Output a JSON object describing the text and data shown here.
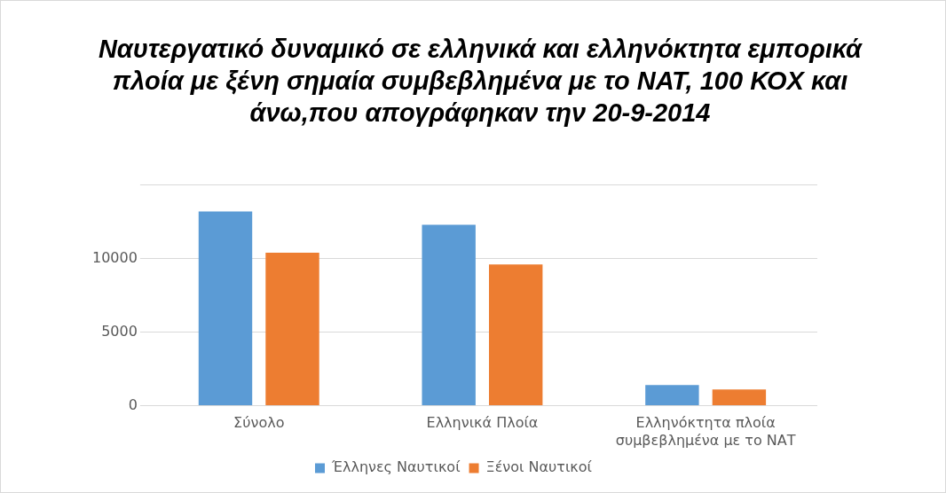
{
  "chart_data": {
    "type": "bar",
    "title": "Ναυτεργατικό δυναμικό σε ελληνικά και ελληνόκτητα εμπορικά πλοία με ξένη σημαία συμβεβλημένα με το ΝΑΤ, 100 ΚΟΧ και άνω,που απογράφηκαν την 20-9-2014",
    "categories": [
      "Σύνολο",
      "Ελληνικά Πλοία",
      "Ελληνόκτητα πλοία συμβεβλημένα με το ΝΑΤ"
    ],
    "series": [
      {
        "name": "Έλληνες Ναυτικοί",
        "color": "#5b9bd5",
        "values": [
          13200,
          12300,
          1400
        ]
      },
      {
        "name": "Ξένοι Ναυτικοί",
        "color": "#ed7d31",
        "values": [
          10400,
          9600,
          1100
        ]
      }
    ],
    "ylim": [
      0,
      15000
    ],
    "yticks": [
      0,
      5000,
      10000,
      {
        "value": 15000,
        "label": null
      }
    ],
    "grid": "y",
    "legend": "bottom"
  }
}
